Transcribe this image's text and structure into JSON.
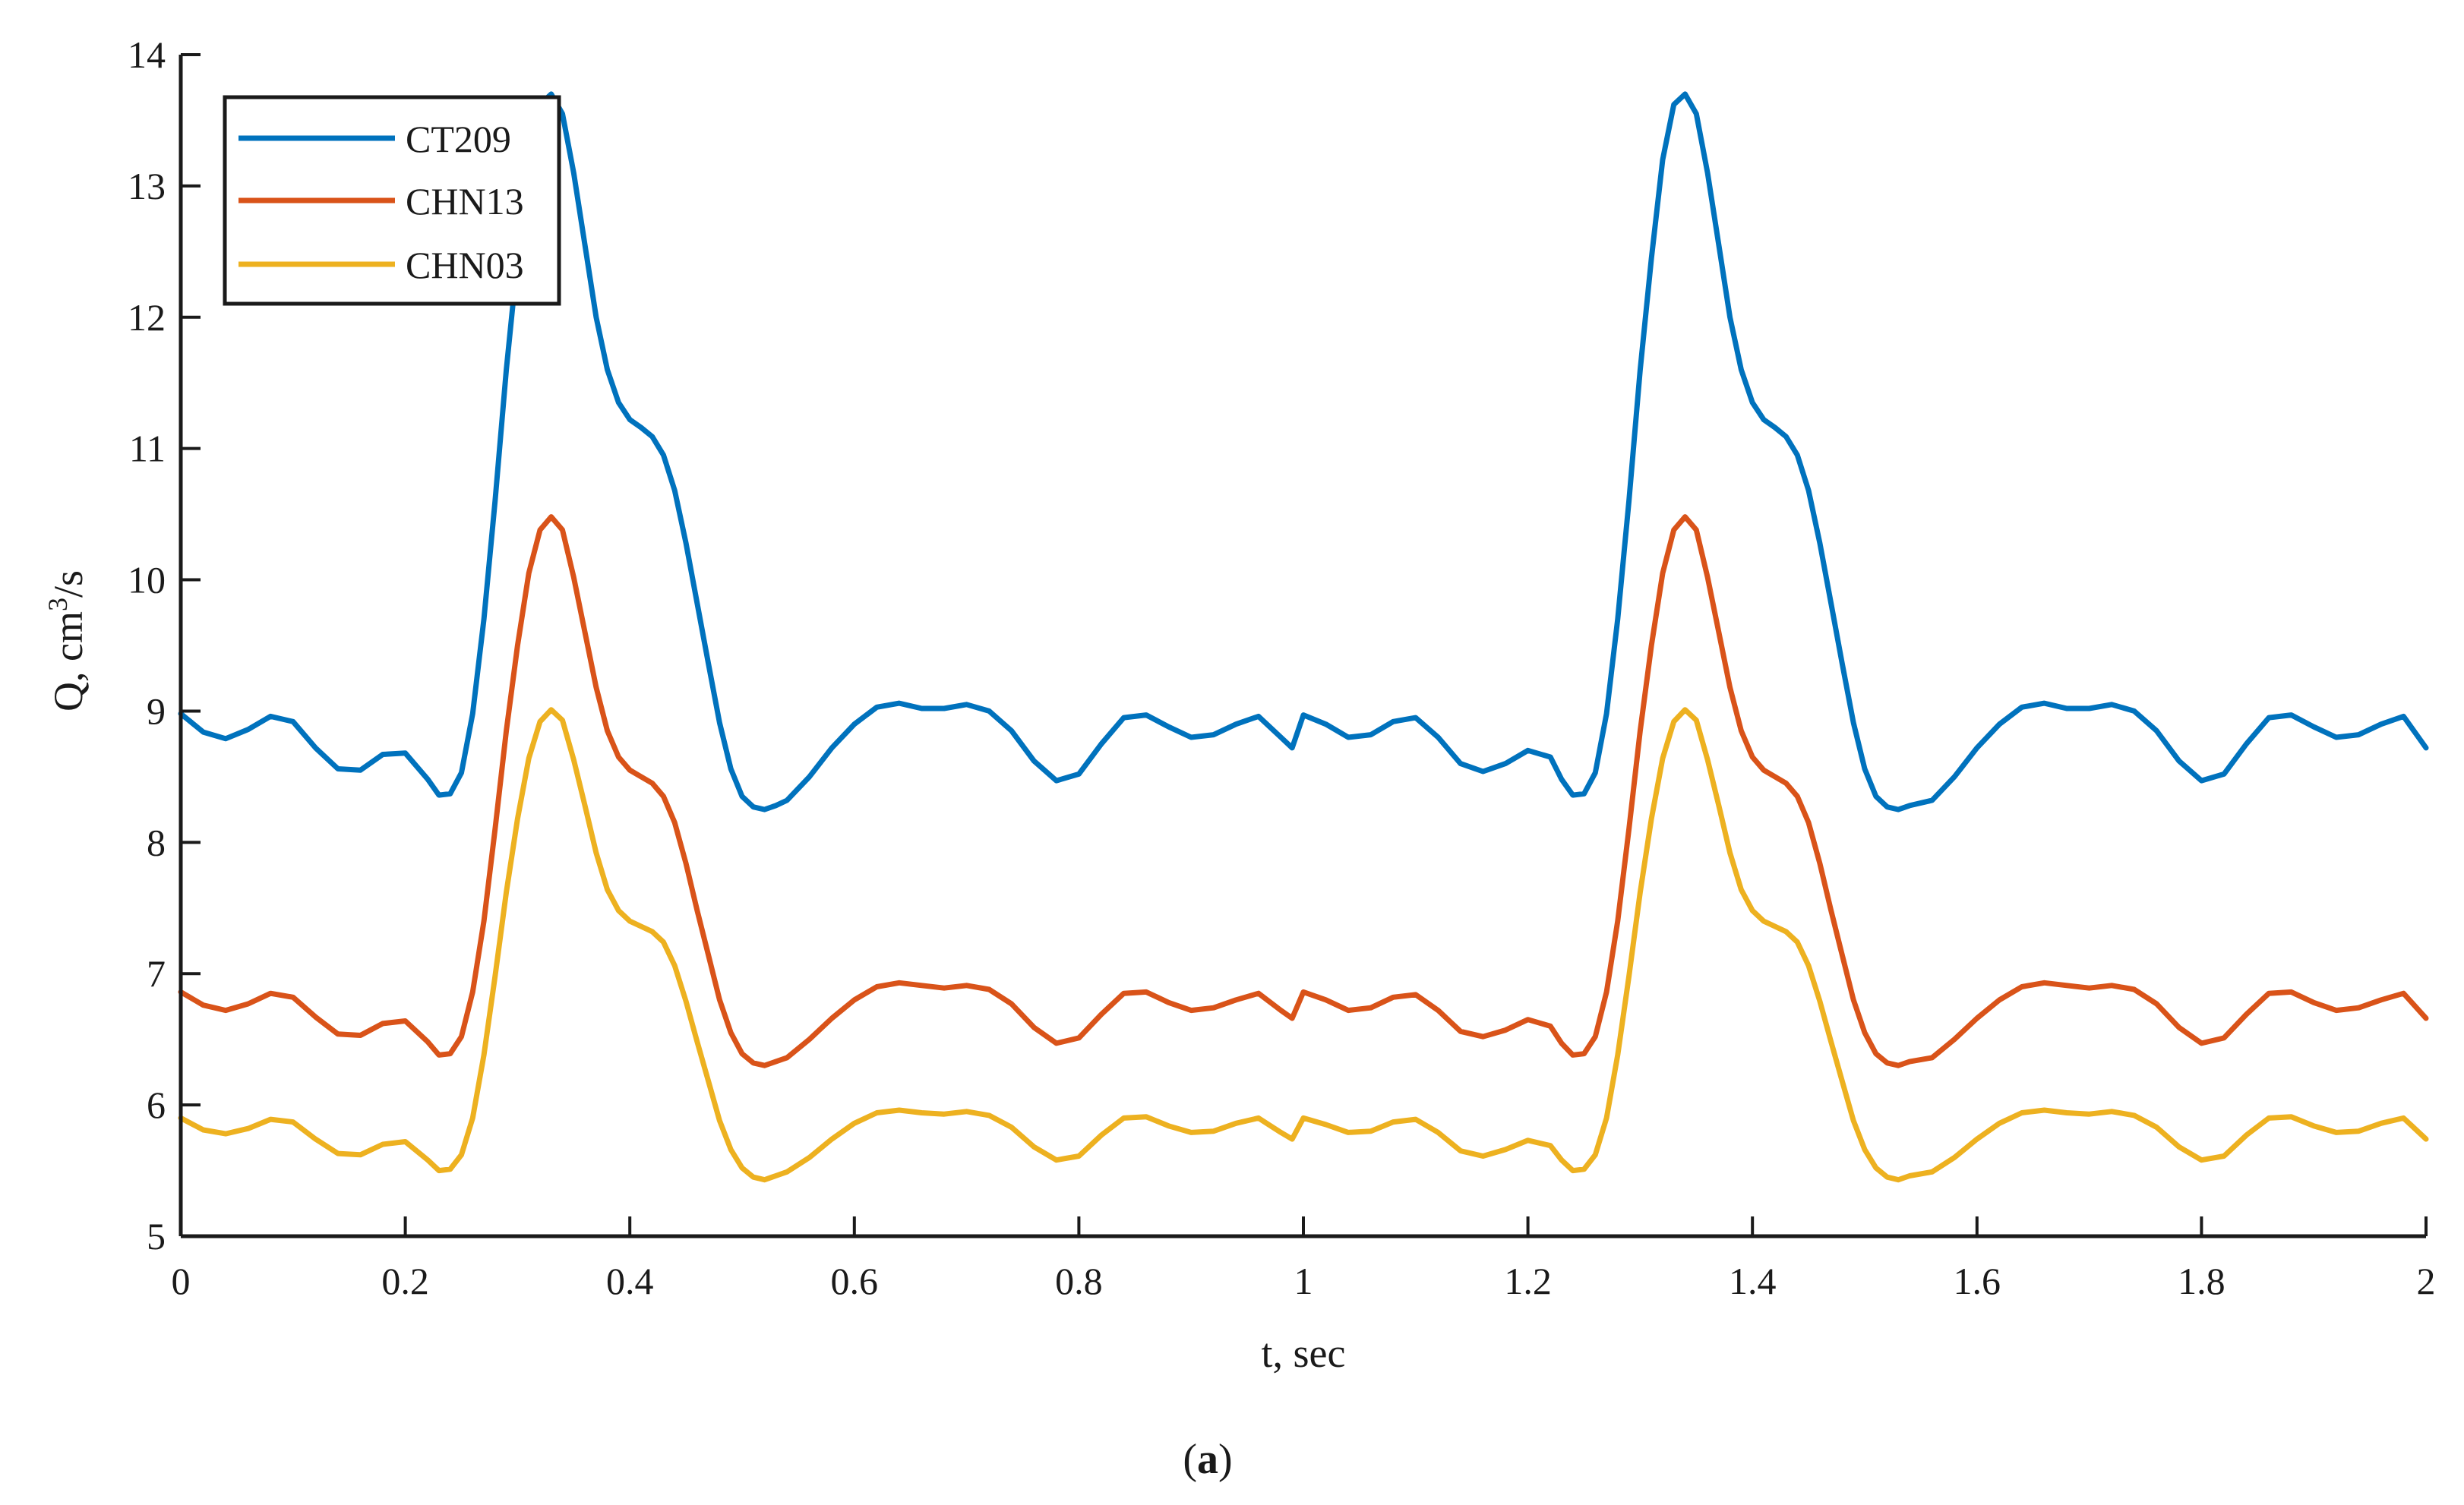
{
  "chart_data": {
    "type": "line",
    "xlabel": "t, sec",
    "ylabel_prefix": "Q, cm",
    "ylabel_superscript": "3",
    "ylabel_suffix": "/s",
    "xlim": [
      0,
      2
    ],
    "ylim": [
      5,
      14
    ],
    "xticks": [
      "0",
      "0.2",
      "0.4",
      "0.6",
      "0.8",
      "1",
      "1.2",
      "1.4",
      "1.6",
      "1.8",
      "2"
    ],
    "yticks": [
      "5",
      "6",
      "7",
      "8",
      "9",
      "10",
      "11",
      "12",
      "13",
      "14"
    ],
    "grid": false,
    "legend_position": "top-left",
    "caption": {
      "open": "(",
      "letter": "a",
      "close": ")"
    },
    "colors": {
      "CT209": "#0072BD",
      "CHN13": "#D95319",
      "CHN03": "#EDB120",
      "axis": "#1a1a1a"
    },
    "x": [
      0,
      0.02,
      0.04,
      0.06,
      0.08,
      0.1,
      0.12,
      0.14,
      0.16,
      0.18,
      0.2,
      0.22,
      0.23,
      0.24,
      0.25,
      0.26,
      0.27,
      0.28,
      0.29,
      0.3,
      0.31,
      0.32,
      0.33,
      0.34,
      0.35,
      0.36,
      0.37,
      0.38,
      0.39,
      0.4,
      0.41,
      0.42,
      0.43,
      0.44,
      0.45,
      0.46,
      0.47,
      0.48,
      0.49,
      0.5,
      0.51,
      0.52,
      0.53,
      0.54,
      0.56,
      0.58,
      0.6,
      0.62,
      0.64,
      0.66,
      0.68,
      0.7,
      0.72,
      0.74,
      0.76,
      0.78,
      0.8,
      0.82,
      0.84,
      0.86,
      0.88,
      0.9,
      0.92,
      0.94,
      0.96,
      0.98,
      0.99,
      1.0,
      1.02,
      1.04,
      1.06,
      1.08,
      1.1,
      1.12,
      1.14,
      1.16,
      1.18,
      1.2,
      1.22,
      1.23,
      1.24,
      1.25,
      1.26,
      1.27,
      1.28,
      1.29,
      1.3,
      1.31,
      1.32,
      1.33,
      1.34,
      1.35,
      1.36,
      1.37,
      1.38,
      1.39,
      1.4,
      1.41,
      1.42,
      1.43,
      1.44,
      1.45,
      1.46,
      1.47,
      1.48,
      1.49,
      1.5,
      1.51,
      1.52,
      1.53,
      1.54,
      1.56,
      1.58,
      1.6,
      1.62,
      1.64,
      1.66,
      1.68,
      1.7,
      1.72,
      1.74,
      1.76,
      1.78,
      1.8,
      1.82,
      1.84,
      1.86,
      1.88,
      1.9,
      1.92,
      1.94,
      1.96,
      1.98,
      2.0
    ],
    "series": [
      {
        "name": "CT209",
        "values": [
          8.98,
          8.84,
          8.79,
          8.86,
          8.96,
          8.92,
          8.72,
          8.56,
          8.55,
          8.67,
          8.68,
          8.48,
          8.36,
          8.37,
          8.53,
          8.98,
          9.7,
          10.6,
          11.6,
          12.45,
          13.2,
          13.62,
          13.7,
          13.55,
          13.1,
          12.55,
          12.0,
          11.6,
          11.35,
          11.22,
          11.16,
          11.09,
          10.95,
          10.68,
          10.28,
          9.82,
          9.36,
          8.91,
          8.56,
          8.35,
          8.27,
          8.25,
          8.28,
          8.32,
          8.5,
          8.72,
          8.9,
          9.03,
          9.06,
          9.02,
          9.02,
          9.05,
          9.0,
          8.85,
          8.62,
          8.47,
          8.52,
          8.75,
          8.95,
          8.97,
          8.88,
          8.8,
          8.82,
          8.9,
          8.96,
          8.8,
          8.72,
          8.97,
          8.9,
          8.8,
          8.82,
          8.92,
          8.95,
          8.8,
          8.6,
          8.54,
          8.6,
          8.7,
          8.65,
          8.48,
          8.36,
          8.37,
          8.53,
          8.98,
          9.7,
          10.6,
          11.6,
          12.45,
          13.2,
          13.62,
          13.7,
          13.55,
          13.1,
          12.55,
          12.0,
          11.6,
          11.35,
          11.22,
          11.16,
          11.09,
          10.95,
          10.68,
          10.28,
          9.82,
          9.36,
          8.91,
          8.56,
          8.35,
          8.27,
          8.25,
          8.28,
          8.32,
          8.5,
          8.72,
          8.9,
          9.03,
          9.06,
          9.02,
          9.02,
          9.05,
          9.0,
          8.85,
          8.62,
          8.47,
          8.52,
          8.75,
          8.95,
          8.97,
          8.88,
          8.8,
          8.82,
          8.9,
          8.96,
          8.72
        ]
      },
      {
        "name": "CHN13",
        "values": [
          6.86,
          6.76,
          6.72,
          6.77,
          6.85,
          6.82,
          6.67,
          6.54,
          6.53,
          6.62,
          6.64,
          6.48,
          6.38,
          6.39,
          6.52,
          6.86,
          7.4,
          8.1,
          8.85,
          9.5,
          10.05,
          10.38,
          10.48,
          10.38,
          10.02,
          9.6,
          9.18,
          8.85,
          8.65,
          8.55,
          8.5,
          8.45,
          8.35,
          8.15,
          7.84,
          7.48,
          7.14,
          6.8,
          6.55,
          6.39,
          6.32,
          6.3,
          6.33,
          6.36,
          6.5,
          6.66,
          6.8,
          6.9,
          6.93,
          6.91,
          6.89,
          6.91,
          6.88,
          6.77,
          6.59,
          6.47,
          6.51,
          6.69,
          6.85,
          6.86,
          6.78,
          6.72,
          6.74,
          6.8,
          6.85,
          6.72,
          6.66,
          6.86,
          6.8,
          6.72,
          6.74,
          6.82,
          6.84,
          6.72,
          6.56,
          6.52,
          6.57,
          6.65,
          6.6,
          6.47,
          6.38,
          6.39,
          6.52,
          6.86,
          7.4,
          8.1,
          8.85,
          9.5,
          10.05,
          10.38,
          10.48,
          10.38,
          10.02,
          9.6,
          9.18,
          8.85,
          8.65,
          8.55,
          8.5,
          8.45,
          8.35,
          8.15,
          7.84,
          7.48,
          7.14,
          6.8,
          6.55,
          6.39,
          6.32,
          6.3,
          6.33,
          6.36,
          6.5,
          6.66,
          6.8,
          6.9,
          6.93,
          6.91,
          6.89,
          6.91,
          6.88,
          6.77,
          6.59,
          6.47,
          6.51,
          6.69,
          6.85,
          6.86,
          6.78,
          6.72,
          6.74,
          6.8,
          6.85,
          6.66
        ]
      },
      {
        "name": "CHN03",
        "values": [
          5.9,
          5.81,
          5.78,
          5.82,
          5.89,
          5.87,
          5.74,
          5.63,
          5.62,
          5.7,
          5.72,
          5.58,
          5.5,
          5.51,
          5.62,
          5.9,
          6.38,
          6.98,
          7.62,
          8.18,
          8.64,
          8.92,
          9.01,
          8.93,
          8.63,
          8.28,
          7.92,
          7.64,
          7.48,
          7.4,
          7.36,
          7.32,
          7.24,
          7.06,
          6.79,
          6.48,
          6.18,
          5.88,
          5.66,
          5.52,
          5.45,
          5.43,
          5.46,
          5.49,
          5.6,
          5.74,
          5.86,
          5.94,
          5.96,
          5.94,
          5.93,
          5.95,
          5.92,
          5.83,
          5.68,
          5.58,
          5.61,
          5.77,
          5.9,
          5.91,
          5.84,
          5.79,
          5.8,
          5.86,
          5.9,
          5.79,
          5.74,
          5.9,
          5.85,
          5.79,
          5.8,
          5.87,
          5.89,
          5.79,
          5.65,
          5.61,
          5.66,
          5.73,
          5.69,
          5.58,
          5.5,
          5.51,
          5.62,
          5.9,
          6.38,
          6.98,
          7.62,
          8.18,
          8.64,
          8.92,
          9.01,
          8.93,
          8.63,
          8.28,
          7.92,
          7.64,
          7.48,
          7.4,
          7.36,
          7.32,
          7.24,
          7.06,
          6.79,
          6.48,
          6.18,
          5.88,
          5.66,
          5.52,
          5.45,
          5.43,
          5.46,
          5.49,
          5.6,
          5.74,
          5.86,
          5.94,
          5.96,
          5.94,
          5.93,
          5.95,
          5.92,
          5.83,
          5.68,
          5.58,
          5.61,
          5.77,
          5.9,
          5.91,
          5.84,
          5.79,
          5.8,
          5.86,
          5.9,
          5.74
        ]
      }
    ]
  }
}
